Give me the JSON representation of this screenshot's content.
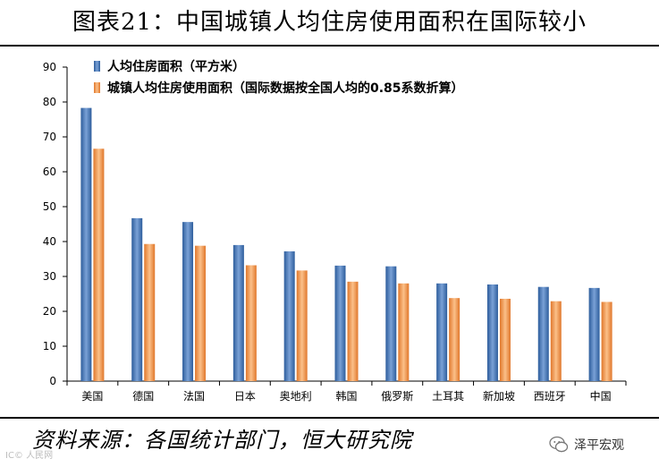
{
  "title": "图表21：中国城镇人均住房使用面积在国际较小",
  "source": "资料来源：各国统计部门，恒大研究院",
  "watermark": {
    "left_text": "IC© 人民网",
    "brand_name": "泽平宏观"
  },
  "colors": {
    "series1_light": "#7aa1d6",
    "series1_dark": "#2d5d9c",
    "series2_light": "#fbc089",
    "series2_dark": "#e0772b"
  },
  "chart_data": {
    "type": "bar",
    "categories": [
      "美国",
      "德国",
      "法国",
      "日本",
      "奥地利",
      "韩国",
      "俄罗斯",
      "土耳其",
      "新加坡",
      "西班牙",
      "中国"
    ],
    "series": [
      {
        "name": "人均住房面积（平方米）",
        "values": [
          78.3,
          46.7,
          45.6,
          39.0,
          37.2,
          33.1,
          32.9,
          28.0,
          27.7,
          27.0,
          26.7
        ]
      },
      {
        "name": "城镇人均住房使用面积（国际数据按全国人均的0.85系数折算）",
        "values": [
          66.6,
          39.3,
          38.8,
          33.2,
          31.7,
          28.5,
          28.0,
          23.8,
          23.6,
          22.9,
          22.7
        ]
      }
    ],
    "ylim": [
      0,
      90
    ],
    "yticks": [
      0,
      10,
      20,
      30,
      40,
      50,
      60,
      70,
      80,
      90
    ],
    "xlabel": "",
    "ylabel": "",
    "legend_position": "top-left",
    "grid": false
  }
}
